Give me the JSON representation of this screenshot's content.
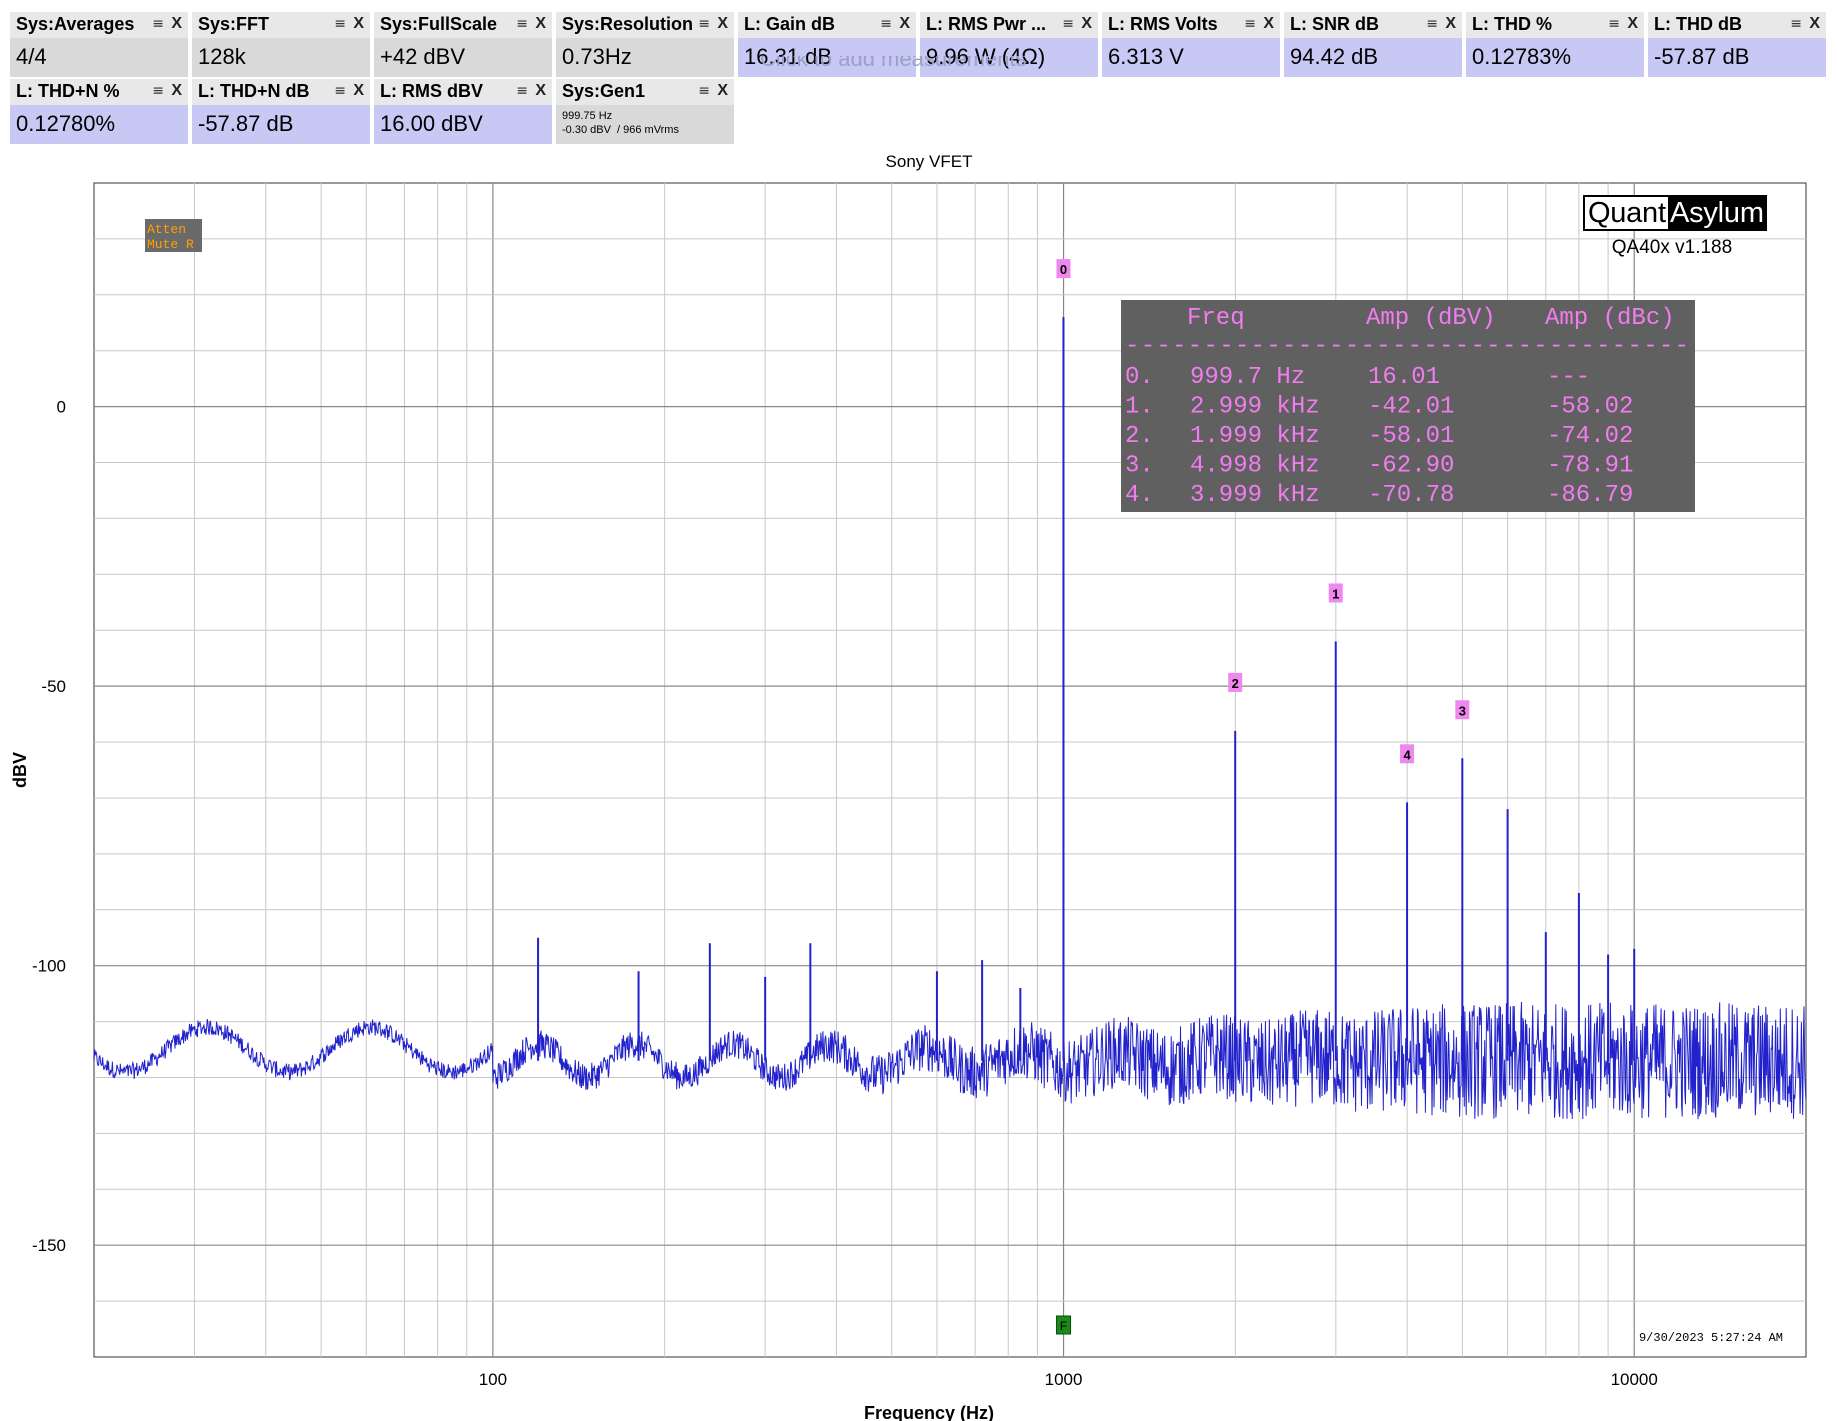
{
  "measurements": [
    {
      "title": "Sys:Averages",
      "value": "4/4",
      "kind": "sys",
      "row": 0,
      "col": 0
    },
    {
      "title": "Sys:FFT",
      "value": "128k",
      "kind": "sys",
      "row": 0,
      "col": 1
    },
    {
      "title": "Sys:FullScale",
      "value": "+42 dBV",
      "kind": "sys",
      "row": 0,
      "col": 2
    },
    {
      "title": "Sys:Resolution",
      "value": "0.73Hz",
      "kind": "sys",
      "row": 0,
      "col": 3
    },
    {
      "title": "L: Gain dB",
      "value": "16.31 dB",
      "kind": "lch",
      "row": 0,
      "col": 4
    },
    {
      "title": "L: RMS Pwr ...",
      "value": "9.96 W (4Ω)",
      "kind": "lch",
      "row": 0,
      "col": 5
    },
    {
      "title": "L: RMS Volts",
      "value": "6.313 V",
      "kind": "lch",
      "row": 0,
      "col": 6
    },
    {
      "title": "L: SNR dB",
      "value": "94.42 dB",
      "kind": "lch",
      "row": 0,
      "col": 7
    },
    {
      "title": "L: THD %",
      "value": "0.12783%",
      "kind": "lch",
      "row": 0,
      "col": 8
    },
    {
      "title": "L: THD dB",
      "value": "-57.87 dB",
      "kind": "lch",
      "row": 0,
      "col": 9
    },
    {
      "title": "L: THD+N %",
      "value": "0.12780%",
      "kind": "lch",
      "row": 1,
      "col": 0
    },
    {
      "title": "L: THD+N dB",
      "value": "-57.87 dB",
      "kind": "lch",
      "row": 1,
      "col": 1
    },
    {
      "title": "L: RMS dBV",
      "value": "16.00 dBV",
      "kind": "lch",
      "row": 1,
      "col": 2
    },
    {
      "title": "Sys:Gen1",
      "value": "999.75 Hz\n-0.30 dBV  / 966 mVrms",
      "kind": "sys",
      "row": 1,
      "col": 3,
      "small": true
    }
  ],
  "tile_icons": {
    "menu": "≡",
    "close": "X"
  },
  "click_to_add": "Click to add measurements",
  "chart_data": {
    "type": "line",
    "title": "Sony VFET",
    "xlabel": "Frequency (Hz)",
    "ylabel": "dBV",
    "x_scale": "log",
    "xlim": [
      20,
      20000
    ],
    "ylim": [
      -170,
      40
    ],
    "x_ticks": [
      100,
      1000,
      10000
    ],
    "x_tick_labels": [
      "100",
      "1000",
      "10000"
    ],
    "y_ticks": [
      0,
      -50,
      -100,
      -150
    ],
    "y_tick_labels": [
      "0",
      "-50",
      "-100",
      "-150"
    ],
    "grid": true,
    "series_color": "#2222cc",
    "noise_floor_dbv": -117,
    "peaks": [
      {
        "x": 999.7,
        "y": 16.01,
        "marker": "0"
      },
      {
        "x": 2999,
        "y": -42.01,
        "marker": "1"
      },
      {
        "x": 1999,
        "y": -58.01,
        "marker": "2"
      },
      {
        "x": 4998,
        "y": -62.9,
        "marker": "3"
      },
      {
        "x": 3999,
        "y": -70.78,
        "marker": "4"
      },
      {
        "x": 6000,
        "y": -72
      },
      {
        "x": 7000,
        "y": -94
      },
      {
        "x": 8000,
        "y": -87
      },
      {
        "x": 9000,
        "y": -98
      },
      {
        "x": 10000,
        "y": -97
      },
      {
        "x": 120,
        "y": -95
      },
      {
        "x": 180,
        "y": -101
      },
      {
        "x": 240,
        "y": -96
      },
      {
        "x": 300,
        "y": -102
      },
      {
        "x": 360,
        "y": -96
      },
      {
        "x": 600,
        "y": -101
      },
      {
        "x": 720,
        "y": -99
      },
      {
        "x": 840,
        "y": -104
      }
    ],
    "marker_color": "#ee88ee",
    "harmonics_table": {
      "headers": [
        "Freq",
        "Amp (dBV)",
        "Amp (dBc)"
      ],
      "divider": "------------------------------------",
      "rows": [
        {
          "idx": "0.",
          "freq": "999.7 Hz",
          "amp_dbv": "16.01",
          "amp_dbc": "---"
        },
        {
          "idx": "1.",
          "freq": "2.999 kHz",
          "amp_dbv": "-42.01",
          "amp_dbc": "-58.02"
        },
        {
          "idx": "2.",
          "freq": "1.999 kHz",
          "amp_dbv": "-58.01",
          "amp_dbc": "-74.02"
        },
        {
          "idx": "3.",
          "freq": "4.998 kHz",
          "amp_dbv": "-62.90",
          "amp_dbc": "-78.91"
        },
        {
          "idx": "4.",
          "freq": "3.999 kHz",
          "amp_dbv": "-70.78",
          "amp_dbc": "-86.79"
        }
      ],
      "bg": "#606060",
      "text_color": "#f07cf0"
    },
    "status_box": {
      "lines": [
        "Atten",
        "Mute R"
      ],
      "bg": "#6a6a6a",
      "color": "#ffa000"
    },
    "freq_marker": {
      "x": 1000,
      "label": "F",
      "bg": "#1a8a1a"
    },
    "logo": {
      "left": "Quant",
      "right": "Asylum",
      "version": "QA40x v1.188"
    },
    "timestamp": "9/30/2023 5:27:24 AM"
  }
}
